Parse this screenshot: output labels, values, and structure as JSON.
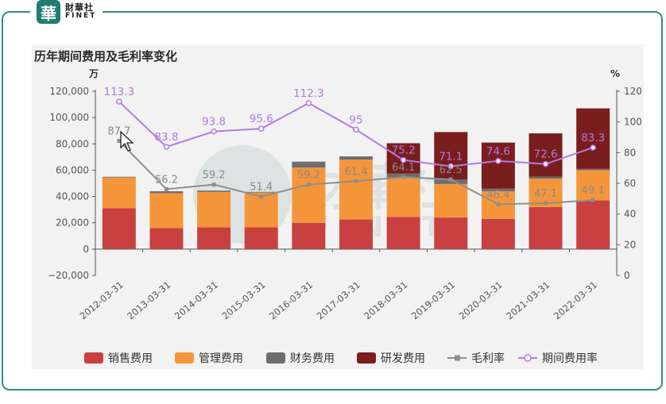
{
  "brand": {
    "mark": "華",
    "cn": "財華社",
    "en": "FINET"
  },
  "watermark": {
    "cn": "財華社",
    "en": "FINET"
  },
  "colors": {
    "frame": "#2f8f84",
    "sales": "#c94040",
    "admin": "#f5953a",
    "finance": "#6e6e6e",
    "rnd": "#7a1d1d",
    "gross_margin": "#8e8e8e",
    "expense_rate": "#b47ae6"
  },
  "chart_data": {
    "type": "bar",
    "title": "历年期间费用及毛利率变化",
    "y_left_unit": "万",
    "y_right_unit": "%",
    "y_left_range": [
      -20000,
      120000
    ],
    "y_left_ticks": [
      "120,000",
      "100,000",
      "80,000",
      "60,000",
      "40,000",
      "20,000",
      "0",
      "−20,000"
    ],
    "y_right_range": [
      0,
      120
    ],
    "y_right_ticks": [
      "120",
      "100",
      "80",
      "60",
      "40",
      "20",
      "0"
    ],
    "categories": [
      "2012-03-31",
      "2013-03-31",
      "2014-03-31",
      "2015-03-31",
      "2016-03-31",
      "2017-03-31",
      "2018-03-31",
      "2019-03-31",
      "2020-03-31",
      "2021-03-31",
      "2022-03-31"
    ],
    "series": [
      {
        "name": "销售费用",
        "kind": "bar",
        "values": [
          31000,
          16000,
          16500,
          16500,
          20000,
          22500,
          24500,
          24000,
          23000,
          32000,
          37000
        ]
      },
      {
        "name": "管理费用",
        "kind": "bar",
        "values": [
          23500,
          26500,
          27000,
          26500,
          42000,
          45500,
          30000,
          25500,
          21000,
          21500,
          23000
        ]
      },
      {
        "name": "财务费用",
        "kind": "bar",
        "values": [
          500,
          1500,
          1000,
          500,
          4500,
          2500,
          3000,
          3500,
          2000,
          1500,
          1000
        ]
      },
      {
        "name": "研发费用",
        "kind": "bar",
        "values": [
          0,
          0,
          0,
          0,
          0,
          0,
          23000,
          36000,
          35000,
          33000,
          46000
        ]
      },
      {
        "name": "毛利率",
        "kind": "line",
        "axis": "right",
        "values": [
          87.7,
          56.2,
          59.2,
          51.4,
          59.2,
          61.4,
          64.1,
          62.5,
          46.4,
          47.1,
          49.1
        ]
      },
      {
        "name": "期间费用率",
        "kind": "line",
        "axis": "right",
        "values": [
          113.3,
          83.8,
          93.8,
          95.6,
          112.3,
          95,
          75.2,
          71.1,
          74.6,
          72.6,
          83.3
        ]
      }
    ],
    "gross_margin_labels": [
      "87.7",
      "56.2",
      "59.2",
      "51.4",
      "59.2",
      "61.4",
      "64.1",
      "62.5",
      "46.4",
      "47.1",
      "49.1"
    ],
    "expense_rate_labels": [
      "113.3",
      "83.8",
      "93.8",
      "95.6",
      "112.3",
      "95",
      "75.2",
      "71.1",
      "74.6",
      "72.6",
      "83.3"
    ],
    "legend": [
      "销售费用",
      "管理费用",
      "财务费用",
      "研发费用",
      "毛利率",
      "期间费用率"
    ],
    "legend_position": "bottom-center",
    "grid": false
  }
}
